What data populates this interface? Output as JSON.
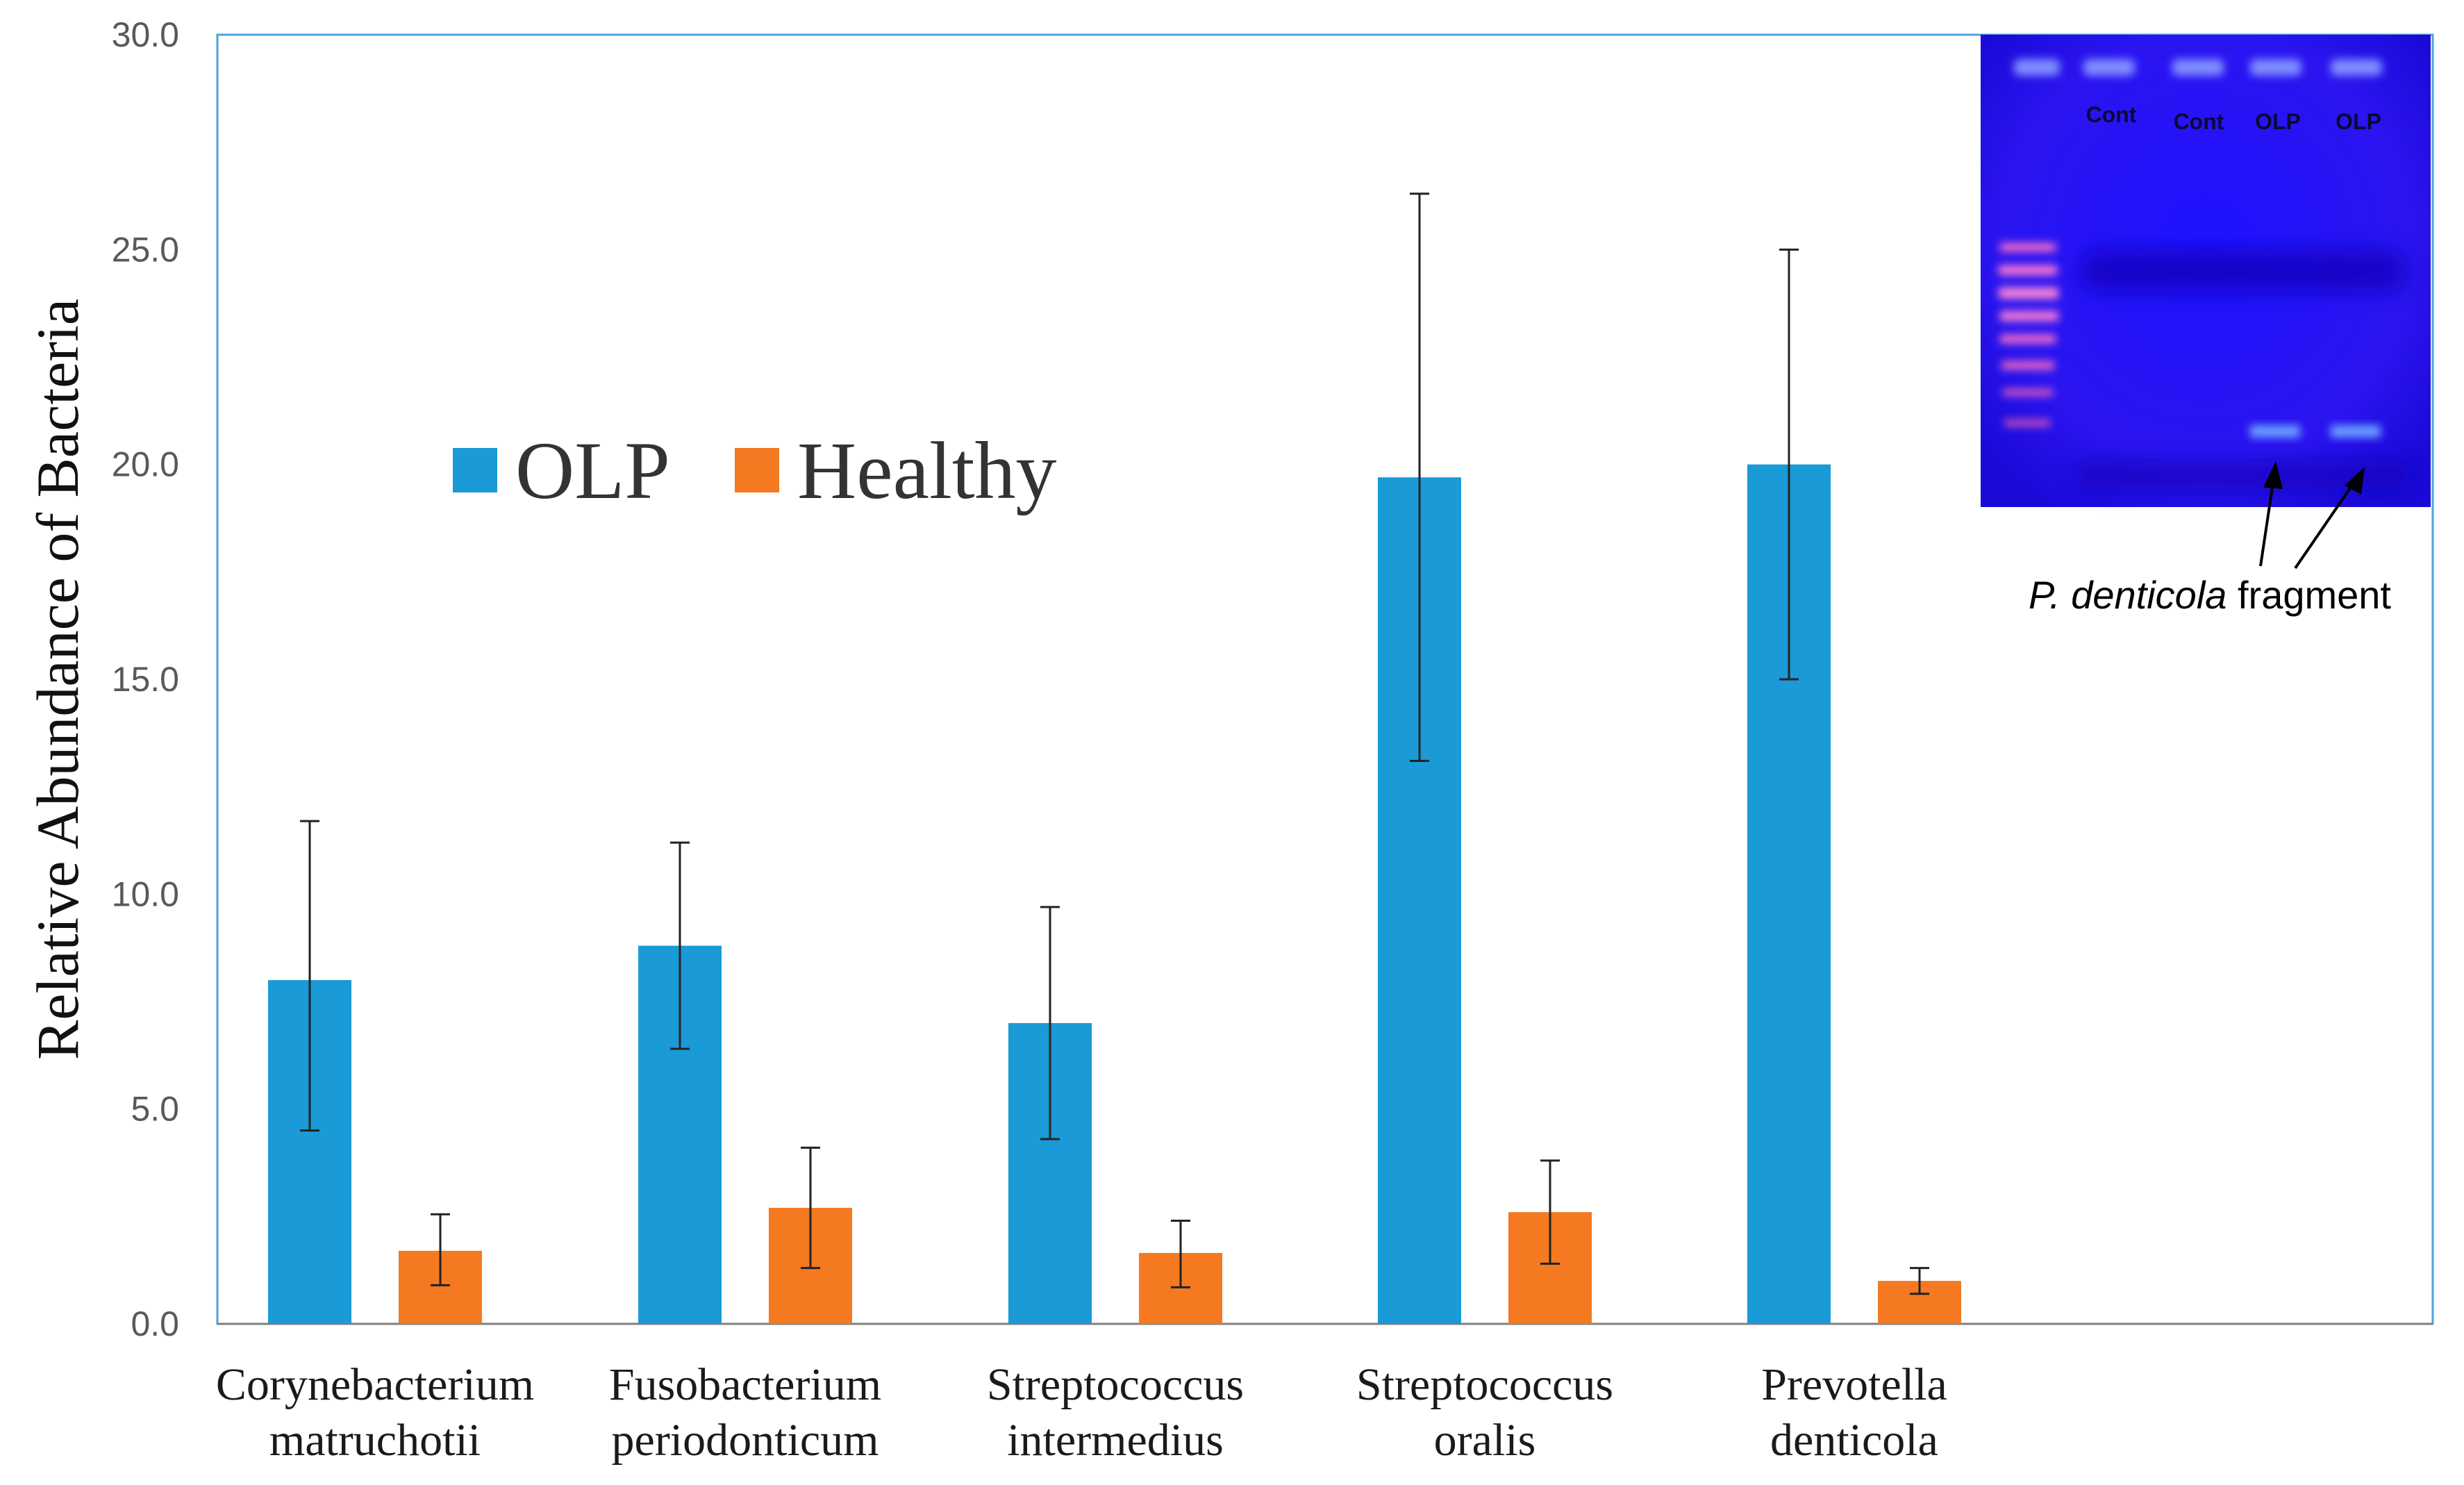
{
  "chart_data": {
    "type": "bar",
    "title": "",
    "xlabel": "",
    "ylabel": "Relative Abundance of Bacteria",
    "ylim": [
      0,
      30
    ],
    "yticks": [
      "0.0",
      "5.0",
      "10.0",
      "15.0",
      "20.0",
      "25.0",
      "30.0"
    ],
    "grid": false,
    "legend_position": "upper-left",
    "categories": [
      [
        "Corynebacterium",
        "matruchotii"
      ],
      [
        "Fusobacterium",
        "periodonticum"
      ],
      [
        "Streptococcus",
        "intermedius"
      ],
      [
        "Streptococcus",
        "oralis"
      ],
      [
        "Prevotella",
        "denticola"
      ]
    ],
    "series": [
      {
        "name": "OLP",
        "color": "#1a9ad6",
        "values": [
          8.0,
          8.8,
          7.0,
          19.7,
          20.0
        ],
        "err_low": [
          4.5,
          6.4,
          4.3,
          13.1,
          15.0
        ],
        "err_high": [
          11.7,
          11.2,
          9.7,
          26.3,
          25.0
        ]
      },
      {
        "name": "Healthy",
        "color": "#f47920",
        "values": [
          1.7,
          2.7,
          1.65,
          2.6,
          1.0
        ],
        "err_low": [
          0.9,
          1.3,
          0.85,
          1.4,
          0.7
        ],
        "err_high": [
          2.55,
          4.1,
          2.4,
          3.8,
          1.3
        ]
      }
    ]
  },
  "inset": {
    "lane_labels": [
      "Cont",
      "Cont",
      "OLP",
      "OLP"
    ],
    "annotation_italic": "P. denticola",
    "annotation_rest": " fragment"
  }
}
